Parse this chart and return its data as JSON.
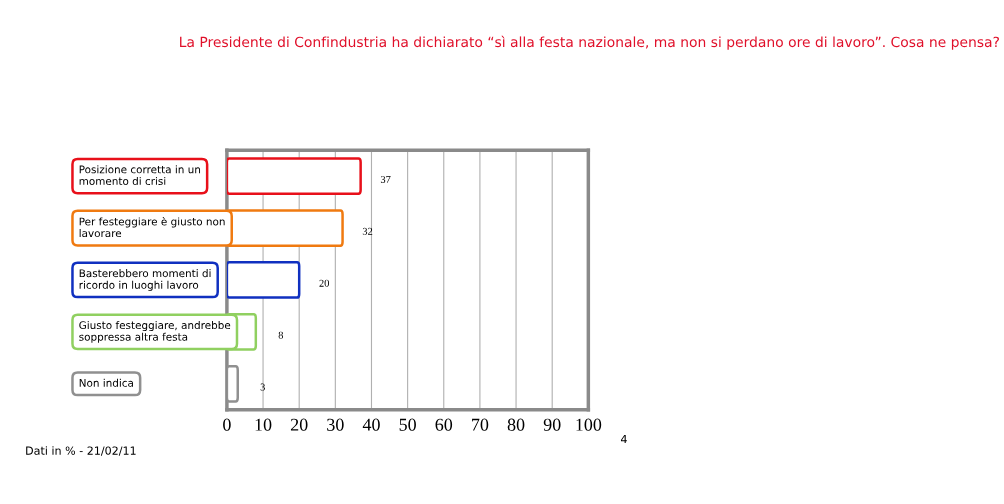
{
  "chart_data": {
    "type": "bar",
    "orientation": "horizontal",
    "title": "La Presidente di Confindustria ha dichiarato “sì alla festa nazionale, ma non si perdano ore di lavoro”. Cosa ne pensa?",
    "categories": [
      "Posizione corretta in un\nmomento di crisi",
      "Per festeggiare è giusto non\nlavorare",
      "Basterebbero momenti di\nricordo in luoghi lavoro",
      "Giusto festeggiare, andrebbe\nsoppressa altra festa",
      "Non indica"
    ],
    "values": [
      37,
      32,
      20,
      8,
      3
    ],
    "colors": [
      "#e8101a",
      "#f07a10",
      "#1030c0",
      "#90d060",
      "#909090"
    ],
    "xlim": [
      0,
      100
    ],
    "xticks": [
      0,
      10,
      20,
      30,
      40,
      50,
      60,
      70,
      80,
      90,
      100
    ],
    "grid": "x",
    "data_labels": true,
    "legend": false,
    "annotations": [
      "Dati in % - 21/02/11",
      "4"
    ]
  }
}
